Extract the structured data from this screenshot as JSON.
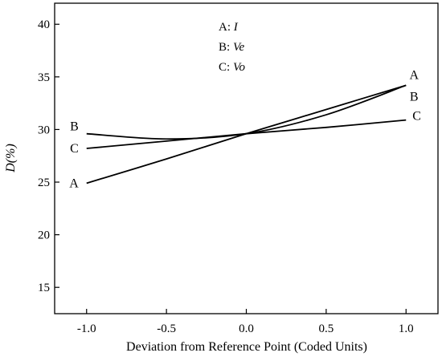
{
  "chart_data": {
    "type": "line",
    "xlabel": "Deviation from Reference Point (Coded Units)",
    "ylabel": "D(%)",
    "xlim": [
      -1.2,
      1.2
    ],
    "ylim": [
      12.5,
      42
    ],
    "x_ticks": [
      -1.0,
      -0.5,
      0.0,
      0.5,
      1.0
    ],
    "x_tick_labels": [
      "-1.0",
      "-0.5",
      "0.0",
      "0.5",
      "1.0"
    ],
    "y_ticks": [
      15,
      20,
      25,
      30,
      35,
      40
    ],
    "y_tick_labels": [
      "15",
      "20",
      "25",
      "30",
      "35",
      "40"
    ],
    "grid": false,
    "legend_position": "top-center",
    "legend": [
      {
        "key": "A",
        "sep": ":",
        "symbol": "I"
      },
      {
        "key": "B",
        "sep": ":",
        "symbol": "Ve"
      },
      {
        "key": "C",
        "sep": ":",
        "symbol": "Vo"
      }
    ],
    "series": [
      {
        "label": "A",
        "x": [
          -1.0,
          -0.5,
          0.0,
          0.5,
          1.0
        ],
        "y": [
          24.9,
          27.2,
          29.6,
          31.9,
          34.2
        ]
      },
      {
        "label": "B",
        "x": [
          -1.0,
          -0.5,
          0.0,
          0.5,
          1.0
        ],
        "y": [
          29.6,
          29.1,
          29.6,
          31.4,
          34.2
        ]
      },
      {
        "label": "C",
        "x": [
          -1.0,
          -0.5,
          0.0,
          0.5,
          1.0
        ],
        "y": [
          28.2,
          28.9,
          29.6,
          30.2,
          30.9
        ]
      }
    ],
    "colors": {
      "line": "#000000",
      "axis": "#000000",
      "background": "#ffffff"
    }
  }
}
